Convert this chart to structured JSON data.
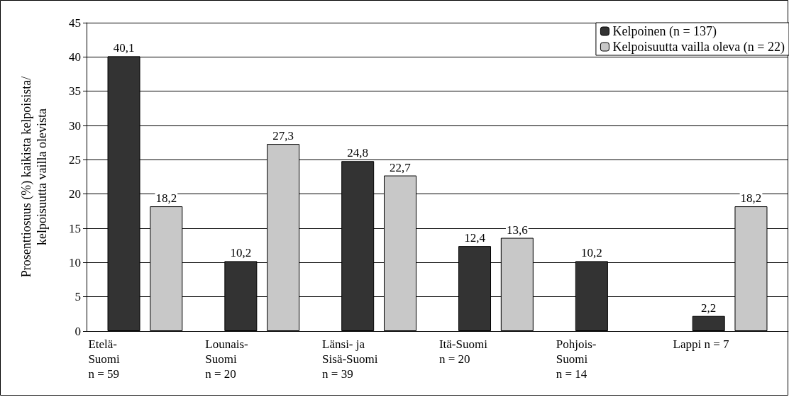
{
  "chart_data": {
    "type": "bar",
    "ylabel": "Prosenttiosuus (%) kaikista kelpoisista/\nkelpoisuutta vailla olevista",
    "categories": [
      "Etelä-\nSuomi\nn = 59",
      "Lounais-\nSuomi\nn = 20",
      "Länsi- ja\nSisä-Suomi\nn = 39",
      "Itä-Suomi\nn = 20",
      "Pohjois-\nSuomi\nn = 14",
      "Lappi n = 7"
    ],
    "series": [
      {
        "name": "Kelpoinen (n = 137)",
        "color": "#333333",
        "values": [
          40.1,
          10.2,
          24.8,
          12.4,
          10.2,
          2.2
        ],
        "value_labels": [
          "40,1",
          "10,2",
          "24,8",
          "12,4",
          "10,2",
          "2,2"
        ]
      },
      {
        "name": "Kelpoisuutta vailla oleva (n = 22)",
        "color": "#c8c8c8",
        "values": [
          18.2,
          27.3,
          22.7,
          13.6,
          null,
          18.2
        ],
        "value_labels": [
          "18,2",
          "27,3",
          "22,7",
          "13,6",
          null,
          "18,2"
        ]
      }
    ],
    "ylim": [
      0,
      45
    ],
    "yticks": [
      0,
      5,
      10,
      15,
      20,
      25,
      30,
      35,
      40,
      45
    ],
    "grid": "y",
    "legend": "top right"
  }
}
